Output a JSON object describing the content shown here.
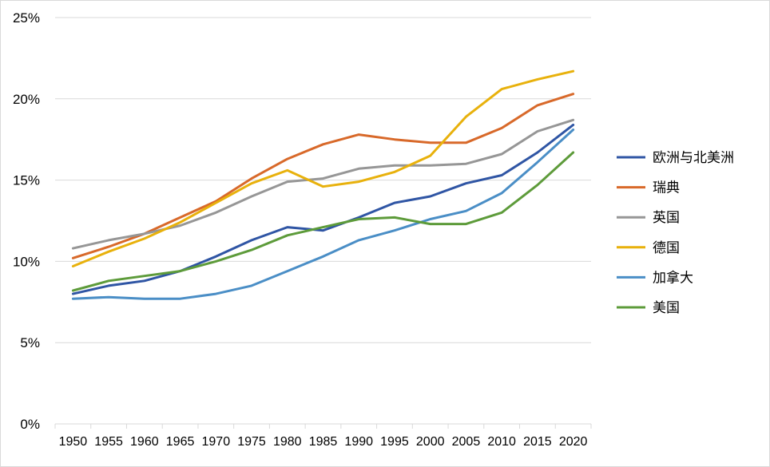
{
  "chart_data": {
    "type": "line",
    "title": "",
    "xlabel": "",
    "ylabel": "",
    "ylim": [
      0,
      25
    ],
    "yticks": [
      0,
      5,
      10,
      15,
      20,
      25
    ],
    "ytick_labels": [
      "0%",
      "5%",
      "10%",
      "15%",
      "20%",
      "25%"
    ],
    "grid": true,
    "legend_position": "right",
    "categories": [
      "1950",
      "1955",
      "1960",
      "1965",
      "1970",
      "1975",
      "1980",
      "1985",
      "1990",
      "1995",
      "2000",
      "2005",
      "2010",
      "2015",
      "2020"
    ],
    "series": [
      {
        "name": "欧洲与北美洲",
        "color": "#2f55a4",
        "values": [
          8.0,
          8.5,
          8.8,
          9.4,
          10.3,
          11.3,
          12.1,
          11.9,
          12.7,
          13.6,
          14.0,
          14.8,
          15.3,
          16.7,
          18.4
        ]
      },
      {
        "name": "瑞典",
        "color": "#d8692a",
        "values": [
          10.2,
          10.9,
          11.7,
          12.7,
          13.7,
          15.1,
          16.3,
          17.2,
          17.8,
          17.5,
          17.3,
          17.3,
          18.2,
          19.6,
          20.3
        ]
      },
      {
        "name": "英国",
        "color": "#969696",
        "values": [
          10.8,
          11.3,
          11.7,
          12.2,
          13.0,
          14.0,
          14.9,
          15.1,
          15.7,
          15.9,
          15.9,
          16.0,
          16.6,
          18.0,
          18.7
        ]
      },
      {
        "name": "德国",
        "color": "#e8b10c",
        "values": [
          9.7,
          10.6,
          11.4,
          12.4,
          13.6,
          14.8,
          15.6,
          14.6,
          14.9,
          15.5,
          16.5,
          18.9,
          20.6,
          21.2,
          21.7
        ]
      },
      {
        "name": "加拿大",
        "color": "#4a8ec6",
        "values": [
          7.7,
          7.8,
          7.7,
          7.7,
          8.0,
          8.5,
          9.4,
          10.3,
          11.3,
          11.9,
          12.6,
          13.1,
          14.2,
          16.1,
          18.1
        ]
      },
      {
        "name": "美国",
        "color": "#5d9b3a",
        "values": [
          8.2,
          8.8,
          9.1,
          9.4,
          10.0,
          10.7,
          11.6,
          12.1,
          12.6,
          12.7,
          12.3,
          12.3,
          13.0,
          14.7,
          16.7
        ]
      }
    ]
  }
}
